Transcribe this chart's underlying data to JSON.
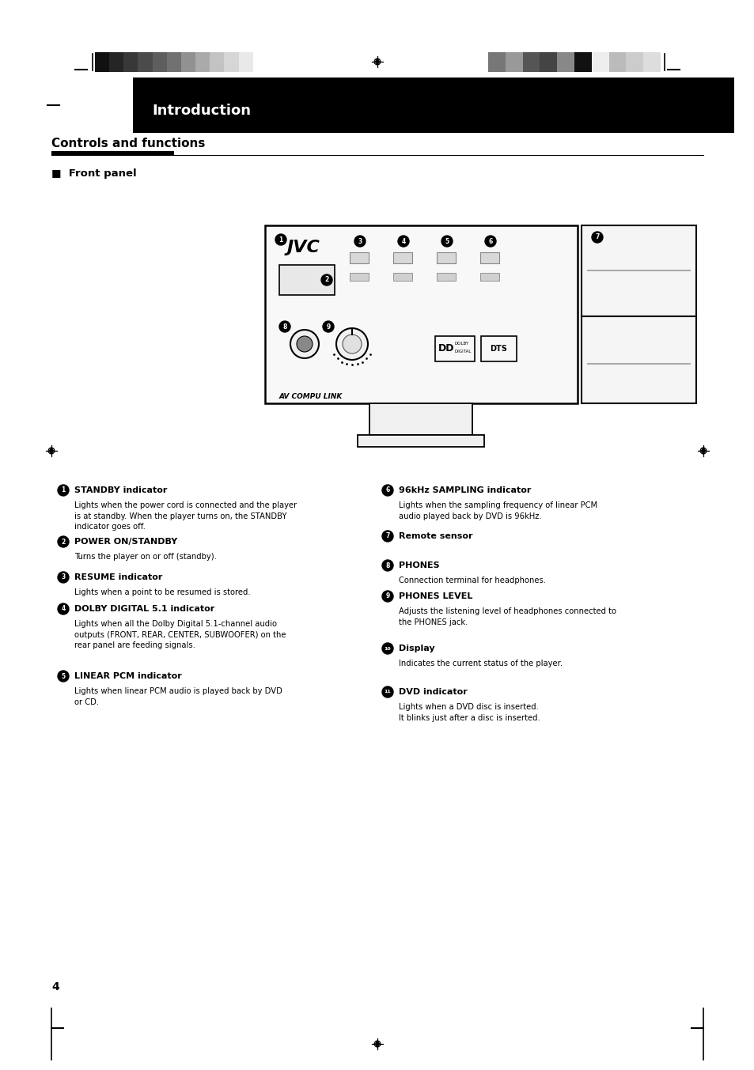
{
  "page_bg": "#ffffff",
  "header_bar_color": "#000000",
  "header_text": "Introduction",
  "header_text_color": "#ffffff",
  "section_title": "Controls and functions",
  "subsection_title": "■  Front panel",
  "page_number": "4",
  "left_col_items": [
    {
      "number": "1",
      "title": "STANDBY indicator",
      "body": "Lights when the power cord is connected and the player\nis at standby. When the player turns on, the STANDBY\nindicator goes off."
    },
    {
      "number": "2",
      "title": "POWER ON/STANDBY",
      "body": "Turns the player on or off (standby)."
    },
    {
      "number": "3",
      "title": "RESUME indicator",
      "body": "Lights when a point to be resumed is stored."
    },
    {
      "number": "4",
      "title": "DOLBY DIGITAL 5.1 indicator",
      "body": "Lights when all the Dolby Digital 5.1-channel audio\noutputs (FRONT, REAR, CENTER, SUBWOOFER) on the\nrear panel are feeding signals."
    },
    {
      "number": "5",
      "title": "LINEAR PCM indicator",
      "body": "Lights when linear PCM audio is played back by DVD\nor CD."
    }
  ],
  "right_col_items": [
    {
      "number": "6",
      "title": "96kHz SAMPLING indicator",
      "body": "Lights when the sampling frequency of linear PCM\naudio played back by DVD is 96kHz."
    },
    {
      "number": "7",
      "title": "Remote sensor",
      "body": ""
    },
    {
      "number": "8",
      "title": "PHONES",
      "body": "Connection terminal for headphones."
    },
    {
      "number": "9",
      "title": "PHONES LEVEL",
      "body": "Adjusts the listening level of headphones connected to\nthe PHONES jack."
    },
    {
      "number": "10",
      "title": "Display",
      "body": "Indicates the current status of the player."
    },
    {
      "number": "11",
      "title": "DVD indicator",
      "body": "Lights when a DVD disc is inserted.\nIt blinks just after a disc is inserted."
    }
  ],
  "left_strip_colors": [
    "#111111",
    "#252525",
    "#383838",
    "#4b4b4b",
    "#5e5e5e",
    "#717171",
    "#919191",
    "#aaaaaa",
    "#c3c3c3",
    "#d6d6d6",
    "#e9e9e9",
    "#ffffff"
  ],
  "right_strip_colors": [
    "#777777",
    "#999999",
    "#555555",
    "#444444",
    "#888888",
    "#111111",
    "#eeeeee",
    "#bbbbbb",
    "#cccccc",
    "#dddddd"
  ]
}
